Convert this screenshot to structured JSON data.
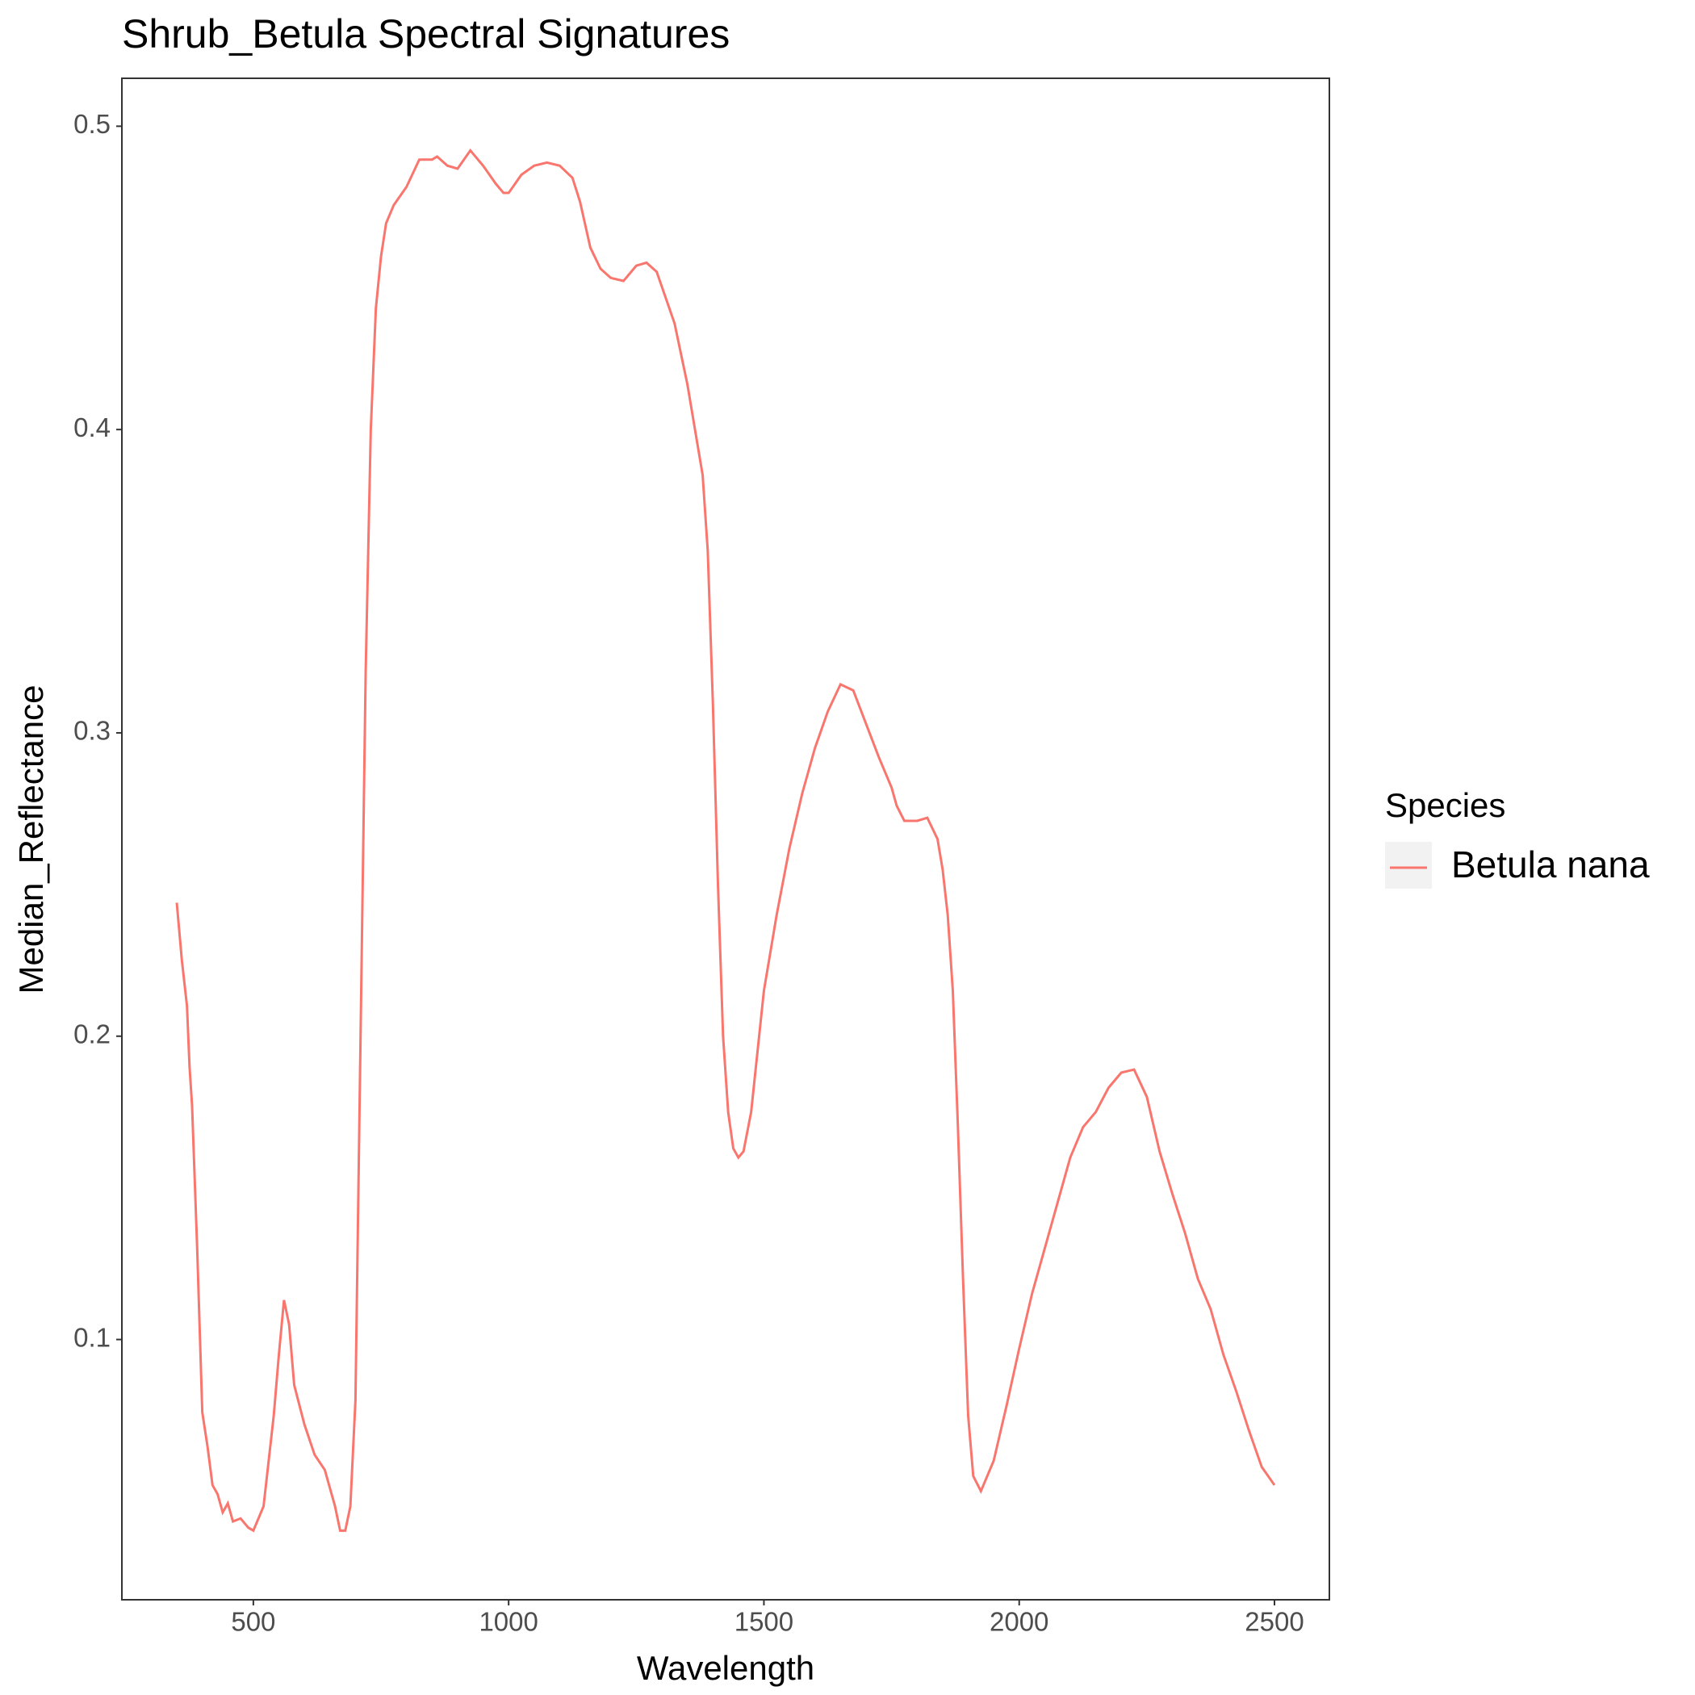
{
  "chart_data": {
    "type": "line",
    "title": "Shrub_Betula Spectral Signatures",
    "x_label": "Wavelength",
    "y_label": "Median_Reflectance",
    "legend_title": "Species",
    "x": [
      350,
      360,
      370,
      375,
      380,
      390,
      400,
      410,
      420,
      430,
      440,
      450,
      460,
      475,
      490,
      500,
      520,
      540,
      550,
      560,
      570,
      580,
      600,
      620,
      640,
      660,
      670,
      680,
      690,
      700,
      710,
      720,
      730,
      740,
      750,
      760,
      775,
      800,
      825,
      850,
      860,
      880,
      900,
      925,
      950,
      975,
      990,
      1000,
      1025,
      1050,
      1075,
      1100,
      1125,
      1140,
      1160,
      1180,
      1200,
      1225,
      1250,
      1270,
      1290,
      1325,
      1350,
      1375,
      1380,
      1390,
      1400,
      1410,
      1420,
      1430,
      1440,
      1450,
      1460,
      1475,
      1500,
      1525,
      1550,
      1575,
      1600,
      1625,
      1650,
      1675,
      1700,
      1725,
      1750,
      1760,
      1775,
      1800,
      1820,
      1840,
      1850,
      1860,
      1870,
      1880,
      1890,
      1900,
      1910,
      1925,
      1950,
      1975,
      2000,
      2025,
      2050,
      2075,
      2100,
      2125,
      2150,
      2175,
      2200,
      2225,
      2250,
      2275,
      2300,
      2325,
      2350,
      2375,
      2400,
      2425,
      2450,
      2475,
      2500
    ],
    "series": [
      {
        "name": "Betula nana",
        "color": "#F8766D",
        "values": [
          0.244,
          0.225,
          0.21,
          0.19,
          0.177,
          0.13,
          0.076,
          0.065,
          0.052,
          0.049,
          0.043,
          0.046,
          0.04,
          0.041,
          0.038,
          0.037,
          0.045,
          0.075,
          0.095,
          0.113,
          0.105,
          0.085,
          0.072,
          0.062,
          0.057,
          0.045,
          0.037,
          0.037,
          0.045,
          0.08,
          0.2,
          0.32,
          0.4,
          0.44,
          0.457,
          0.468,
          0.474,
          0.48,
          0.489,
          0.489,
          0.49,
          0.487,
          0.486,
          0.492,
          0.487,
          0.481,
          0.478,
          0.478,
          0.484,
          0.487,
          0.488,
          0.487,
          0.483,
          0.475,
          0.46,
          0.453,
          0.45,
          0.449,
          0.454,
          0.455,
          0.452,
          0.435,
          0.415,
          0.39,
          0.385,
          0.36,
          0.31,
          0.25,
          0.2,
          0.175,
          0.163,
          0.16,
          0.162,
          0.175,
          0.215,
          0.24,
          0.262,
          0.28,
          0.295,
          0.307,
          0.316,
          0.314,
          0.303,
          0.292,
          0.282,
          0.276,
          0.271,
          0.271,
          0.272,
          0.265,
          0.255,
          0.24,
          0.215,
          0.17,
          0.12,
          0.075,
          0.055,
          0.05,
          0.06,
          0.078,
          0.097,
          0.115,
          0.13,
          0.145,
          0.16,
          0.17,
          0.175,
          0.183,
          0.188,
          0.189,
          0.18,
          0.162,
          0.148,
          0.135,
          0.12,
          0.11,
          0.095,
          0.083,
          0.07,
          0.058,
          0.052
        ]
      }
    ],
    "xlim": [
      242.5,
      2607.5
    ],
    "ylim": [
      0.0142,
      0.5158
    ],
    "xticks": [
      500,
      1000,
      1500,
      2000,
      2500
    ],
    "yticks": [
      0.1,
      0.2,
      0.3,
      0.4,
      0.5
    ],
    "grid": false
  }
}
